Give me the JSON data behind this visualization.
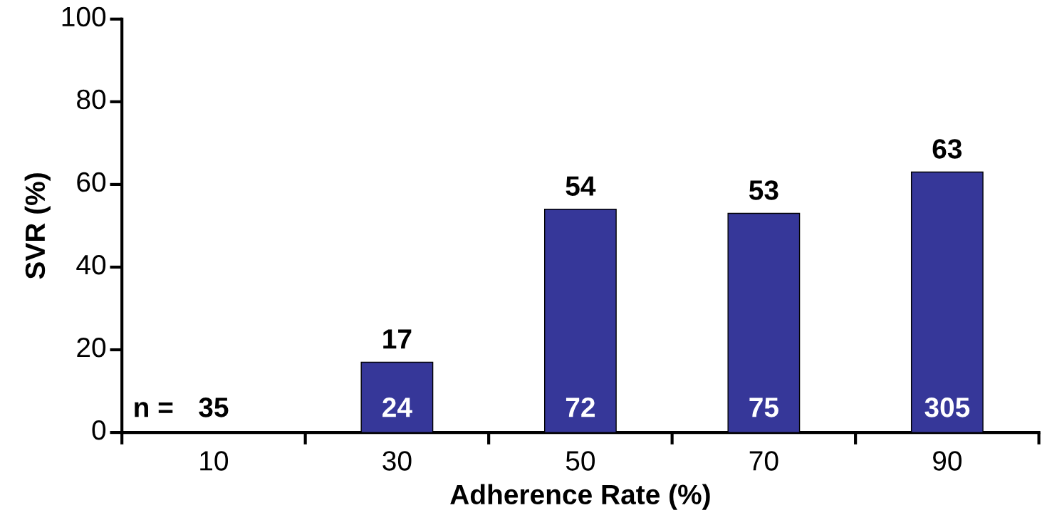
{
  "chart_data": {
    "type": "bar",
    "xlabel": "Adherence Rate (%)",
    "ylabel": "SVR (%)",
    "categories": [
      "10",
      "30",
      "50",
      "70",
      "90"
    ],
    "values": [
      0,
      17,
      54,
      53,
      63
    ],
    "value_labels": [
      null,
      "17",
      "54",
      "53",
      "63"
    ],
    "color": "#363799",
    "ylim": [
      0,
      100
    ],
    "yticks": [
      0,
      20,
      40,
      60,
      80,
      100
    ],
    "grid": false,
    "annotations": [
      "n =",
      "35",
      "24",
      "72",
      "75",
      "305"
    ]
  }
}
